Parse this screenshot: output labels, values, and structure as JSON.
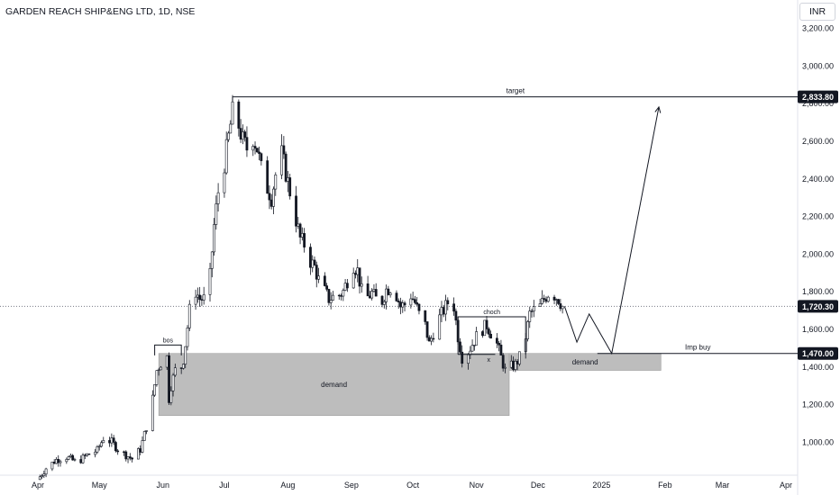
{
  "header": {
    "title": "GARDEN REACH SHIP&ENG LTD, 1D, NSE",
    "currency_button": "INR"
  },
  "colors": {
    "up": "#26a69a",
    "down": "#131722",
    "candle_outline": "#131722",
    "zone_fill": "#bdbdbd",
    "line": "#131722",
    "dotted": "#787b86"
  },
  "chart_data": {
    "type": "candlestick",
    "symbol": "GARDEN REACH SHIP&ENG LTD",
    "interval": "1D",
    "exchange": "NSE",
    "y_ticks": [
      "1,000.00",
      "1,200.00",
      "1,400.00",
      "1,600.00",
      "1,800.00",
      "2,000.00",
      "2,200.00",
      "2,400.00",
      "2,600.00",
      "2,800.00",
      "3,000.00",
      "3,200.00"
    ],
    "y_tick_values": [
      1000,
      1200,
      1400,
      1600,
      1800,
      2000,
      2200,
      2400,
      2600,
      2800,
      3000,
      3200
    ],
    "x_ticks": [
      "Apr",
      "May",
      "Jun",
      "Jul",
      "Aug",
      "Sep",
      "Oct",
      "Nov",
      "Dec",
      "2025",
      "Feb",
      "Mar",
      "Apr"
    ],
    "x_tick_dates": [
      "2024-04-01",
      "2024-05-01",
      "2024-06-01",
      "2024-07-01",
      "2024-08-01",
      "2024-09-01",
      "2024-10-01",
      "2024-11-01",
      "2024-12-01",
      "2025-01-01",
      "2025-02-01",
      "2025-03-01",
      "2025-04-01"
    ],
    "price_labels": [
      {
        "text": "2,833.80",
        "value": 2833.8
      },
      {
        "text": "1,720.30",
        "value": 1720.3,
        "style": "dotted"
      },
      {
        "text": "1,470.00",
        "value": 1470.0
      }
    ],
    "close_path": [
      [
        "2024-04-01",
        800
      ],
      [
        "2024-04-05",
        860
      ],
      [
        "2024-04-10",
        905
      ],
      [
        "2024-04-15",
        920
      ],
      [
        "2024-04-20",
        890
      ],
      [
        "2024-04-25",
        930
      ],
      [
        "2024-04-30",
        955
      ],
      [
        "2024-05-03",
        1020
      ],
      [
        "2024-05-07",
        1000
      ],
      [
        "2024-05-10",
        960
      ],
      [
        "2024-05-14",
        930
      ],
      [
        "2024-05-17",
        910
      ],
      [
        "2024-05-21",
        960
      ],
      [
        "2024-05-24",
        1080
      ],
      [
        "2024-05-27",
        1230
      ],
      [
        "2024-05-29",
        1380
      ],
      [
        "2024-05-31",
        1420
      ],
      [
        "2024-06-03",
        1450
      ],
      [
        "2024-06-04",
        1230
      ],
      [
        "2024-06-05",
        1300
      ],
      [
        "2024-06-07",
        1380
      ],
      [
        "2024-06-10",
        1400
      ],
      [
        "2024-06-11",
        1440
      ],
      [
        "2024-06-12",
        1520
      ],
      [
        "2024-06-14",
        1700
      ],
      [
        "2024-06-17",
        1800
      ],
      [
        "2024-06-19",
        1760
      ],
      [
        "2024-06-21",
        1760
      ],
      [
        "2024-06-24",
        1880
      ],
      [
        "2024-06-26",
        2150
      ],
      [
        "2024-06-28",
        2330
      ],
      [
        "2024-07-01",
        2480
      ],
      [
        "2024-07-03",
        2620
      ],
      [
        "2024-07-05",
        2750
      ],
      [
        "2024-07-08",
        2680
      ],
      [
        "2024-07-10",
        2600
      ],
      [
        "2024-07-12",
        2560
      ],
      [
        "2024-07-15",
        2620
      ],
      [
        "2024-07-17",
        2560
      ],
      [
        "2024-07-19",
        2450
      ],
      [
        "2024-07-22",
        2350
      ],
      [
        "2024-07-24",
        2300
      ],
      [
        "2024-07-26",
        2420
      ],
      [
        "2024-07-29",
        2530
      ],
      [
        "2024-07-31",
        2430
      ],
      [
        "2024-08-02",
        2330
      ],
      [
        "2024-08-05",
        2180
      ],
      [
        "2024-08-07",
        2080
      ],
      [
        "2024-08-09",
        2050
      ],
      [
        "2024-08-12",
        1960
      ],
      [
        "2024-08-14",
        1930
      ],
      [
        "2024-08-16",
        1860
      ],
      [
        "2024-08-19",
        1800
      ],
      [
        "2024-08-21",
        1760
      ],
      [
        "2024-08-23",
        1770
      ],
      [
        "2024-08-26",
        1780
      ],
      [
        "2024-08-28",
        1800
      ],
      [
        "2024-08-30",
        1860
      ],
      [
        "2024-09-02",
        1940
      ],
      [
        "2024-09-04",
        1910
      ],
      [
        "2024-09-06",
        1800
      ],
      [
        "2024-09-09",
        1770
      ],
      [
        "2024-09-11",
        1790
      ],
      [
        "2024-09-13",
        1760
      ],
      [
        "2024-09-16",
        1750
      ],
      [
        "2024-09-18",
        1810
      ],
      [
        "2024-09-20",
        1820
      ],
      [
        "2024-09-23",
        1780
      ],
      [
        "2024-09-25",
        1720
      ],
      [
        "2024-09-27",
        1730
      ],
      [
        "2024-09-30",
        1780
      ],
      [
        "2024-10-02",
        1740
      ],
      [
        "2024-10-04",
        1680
      ],
      [
        "2024-10-07",
        1620
      ],
      [
        "2024-10-09",
        1520
      ],
      [
        "2024-10-11",
        1580
      ],
      [
        "2024-10-14",
        1660
      ],
      [
        "2024-10-16",
        1700
      ],
      [
        "2024-10-18",
        1740
      ],
      [
        "2024-10-21",
        1720
      ],
      [
        "2024-10-23",
        1560
      ],
      [
        "2024-10-25",
        1450
      ],
      [
        "2024-10-28",
        1480
      ],
      [
        "2024-10-30",
        1520
      ],
      [
        "2024-11-01",
        1560
      ],
      [
        "2024-11-04",
        1600
      ],
      [
        "2024-11-06",
        1620
      ],
      [
        "2024-11-08",
        1580
      ],
      [
        "2024-11-11",
        1520
      ],
      [
        "2024-11-13",
        1450
      ],
      [
        "2024-11-15",
        1380
      ],
      [
        "2024-11-18",
        1400
      ],
      [
        "2024-11-20",
        1410
      ],
      [
        "2024-11-22",
        1450
      ],
      [
        "2024-11-25",
        1560
      ],
      [
        "2024-11-27",
        1680
      ],
      [
        "2024-11-29",
        1700
      ],
      [
        "2024-12-02",
        1720
      ],
      [
        "2024-12-04",
        1760
      ],
      [
        "2024-12-06",
        1790
      ],
      [
        "2024-12-09",
        1780
      ],
      [
        "2024-12-11",
        1760
      ],
      [
        "2024-12-13",
        1720
      ]
    ],
    "zones": [
      {
        "label": "demand",
        "from": "2024-05-30",
        "to": "2024-11-17",
        "top": 1470,
        "bottom": 1140
      },
      {
        "label": "demand",
        "from": "2024-11-17",
        "to": "2025-01-30",
        "top": 1470,
        "bottom": 1380
      }
    ],
    "hlines": [
      {
        "label": "target",
        "from": "2024-07-05",
        "to": "2025-04-07",
        "value": 2833.8
      },
      {
        "label": "Imp buy",
        "from": "2024-12-30",
        "to": "2025-04-07",
        "value": 1470
      }
    ],
    "brackets": [
      {
        "label": "bos",
        "from": "2024-05-28",
        "to": "2024-06-10",
        "top": 1515,
        "bottom": 1460
      },
      {
        "label": "choch",
        "from": "2024-10-23",
        "to": "2024-11-25",
        "top": 1665,
        "bottom": 1465
      }
    ],
    "markers": [
      {
        "label": "x",
        "date": "2024-11-07",
        "value": 1440
      }
    ],
    "projection": [
      [
        "2024-12-14",
        1720
      ],
      [
        "2024-12-20",
        1530
      ],
      [
        "2024-12-26",
        1680
      ],
      [
        "2025-01-06",
        1470
      ],
      [
        "2025-01-29",
        2780
      ]
    ],
    "ylim": [
      940,
      3260
    ]
  }
}
